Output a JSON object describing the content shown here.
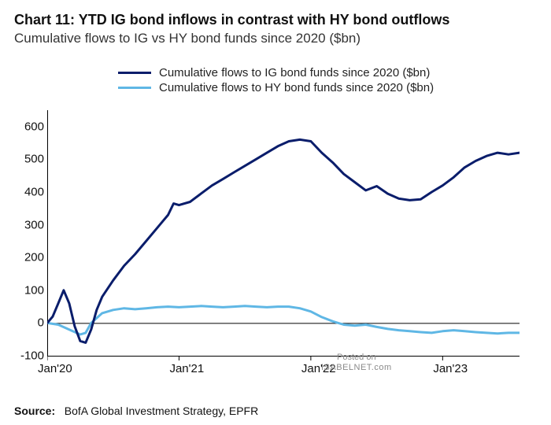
{
  "title": "Chart 11: YTD IG bond inflows in contrast with HY bond outflows",
  "subtitle": "Cumulative flows to IG vs HY bond funds since 2020 ($bn)",
  "legend": {
    "ig": "Cumulative flows to IG bond funds since 2020 ($bn)",
    "hy": "Cumulative flows to HY bond funds since 2020 ($bn)"
  },
  "source_label": "Source:",
  "source_text": "BofA Global Investment Strategy, EPFR",
  "watermark_line1": "Posted on",
  "watermark_line2": "ISABELNET.com",
  "chart": {
    "type": "line",
    "background_color": "#ffffff",
    "axis_color": "#000000",
    "grid": false,
    "x": {
      "min": 0,
      "max": 43,
      "ticks": [
        0,
        12,
        24,
        36
      ],
      "tick_labels": [
        "Jan'20",
        "Jan'21",
        "Jan'22",
        "Jan'23"
      ]
    },
    "y": {
      "min": -100,
      "max": 650,
      "ticks": [
        -100,
        0,
        100,
        200,
        300,
        400,
        500,
        600
      ],
      "tick_labels": [
        "-100",
        "0",
        "100",
        "200",
        "300",
        "400",
        "500",
        "600"
      ]
    },
    "series": {
      "ig": {
        "color": "#0a1d6b",
        "line_width": 3,
        "data": [
          [
            0,
            0
          ],
          [
            0.5,
            20
          ],
          [
            1,
            60
          ],
          [
            1.5,
            100
          ],
          [
            2,
            60
          ],
          [
            2.5,
            -10
          ],
          [
            3,
            -55
          ],
          [
            3.5,
            -60
          ],
          [
            4,
            -20
          ],
          [
            4.5,
            40
          ],
          [
            5,
            80
          ],
          [
            6,
            130
          ],
          [
            7,
            175
          ],
          [
            8,
            210
          ],
          [
            9,
            250
          ],
          [
            10,
            290
          ],
          [
            10.5,
            310
          ],
          [
            11,
            330
          ],
          [
            11.5,
            365
          ],
          [
            12,
            360
          ],
          [
            13,
            370
          ],
          [
            14,
            395
          ],
          [
            15,
            420
          ],
          [
            16,
            440
          ],
          [
            17,
            460
          ],
          [
            18,
            480
          ],
          [
            19,
            500
          ],
          [
            20,
            520
          ],
          [
            21,
            540
          ],
          [
            22,
            555
          ],
          [
            23,
            560
          ],
          [
            24,
            555
          ],
          [
            25,
            520
          ],
          [
            26,
            490
          ],
          [
            27,
            455
          ],
          [
            28,
            430
          ],
          [
            29,
            405
          ],
          [
            30,
            418
          ],
          [
            31,
            395
          ],
          [
            32,
            380
          ],
          [
            33,
            375
          ],
          [
            34,
            378
          ],
          [
            35,
            400
          ],
          [
            36,
            420
          ],
          [
            37,
            445
          ],
          [
            38,
            475
          ],
          [
            39,
            495
          ],
          [
            40,
            510
          ],
          [
            41,
            520
          ],
          [
            42,
            515
          ],
          [
            43,
            520
          ]
        ]
      },
      "hy": {
        "color": "#5fb7e5",
        "line_width": 3,
        "data": [
          [
            0,
            0
          ],
          [
            1,
            -5
          ],
          [
            2,
            -20
          ],
          [
            3,
            -35
          ],
          [
            3.5,
            -30
          ],
          [
            4,
            0
          ],
          [
            5,
            30
          ],
          [
            6,
            40
          ],
          [
            7,
            45
          ],
          [
            8,
            42
          ],
          [
            9,
            45
          ],
          [
            10,
            48
          ],
          [
            11,
            50
          ],
          [
            12,
            48
          ],
          [
            13,
            50
          ],
          [
            14,
            52
          ],
          [
            15,
            50
          ],
          [
            16,
            48
          ],
          [
            17,
            50
          ],
          [
            18,
            52
          ],
          [
            19,
            50
          ],
          [
            20,
            48
          ],
          [
            21,
            50
          ],
          [
            22,
            50
          ],
          [
            23,
            45
          ],
          [
            24,
            35
          ],
          [
            25,
            18
          ],
          [
            26,
            5
          ],
          [
            27,
            -5
          ],
          [
            28,
            -8
          ],
          [
            29,
            -5
          ],
          [
            30,
            -12
          ],
          [
            31,
            -18
          ],
          [
            32,
            -22
          ],
          [
            33,
            -25
          ],
          [
            34,
            -28
          ],
          [
            35,
            -30
          ],
          [
            36,
            -25
          ],
          [
            37,
            -22
          ],
          [
            38,
            -25
          ],
          [
            39,
            -28
          ],
          [
            40,
            -30
          ],
          [
            41,
            -32
          ],
          [
            42,
            -30
          ],
          [
            43,
            -30
          ]
        ]
      }
    }
  }
}
